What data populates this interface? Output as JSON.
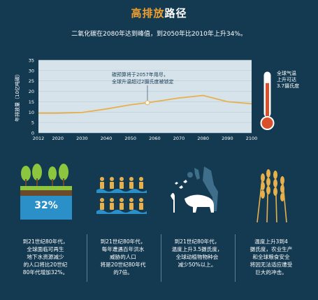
{
  "header": {
    "title_accent": "高排放",
    "title_rest": "路径"
  },
  "subtitle": "二氧化碳在2080年达到峰值，到2050年比2010年上升34%。",
  "annotation": {
    "line1": "碳预算将于2057年用尽，",
    "line2": "全球升温超过2摄氏度被锁定"
  },
  "thermometer": {
    "line1": "全球气温",
    "line2": "上升可达",
    "line3": "3.7摄氏度",
    "fill_fraction": 0.78,
    "icon": "thermometer-icon"
  },
  "chart_data": {
    "type": "line",
    "ylabel": "年排放量（10亿吨碳）",
    "ylim": [
      0,
      35
    ],
    "yticks": [
      0,
      5,
      10,
      15,
      20,
      25,
      30,
      35
    ],
    "xlim": [
      2012,
      2100
    ],
    "xticks": [
      2012,
      2020,
      2030,
      2040,
      2050,
      2060,
      2070,
      2080,
      2090,
      2100
    ],
    "series": [
      {
        "x": [
          2012,
          2020,
          2030,
          2040,
          2050,
          2057,
          2060,
          2070,
          2080,
          2090,
          2100
        ],
        "values": [
          9.5,
          9.5,
          9.8,
          11.5,
          13.5,
          14.5,
          15.0,
          16.8,
          18.0,
          15.0,
          14.0
        ]
      }
    ],
    "marker": {
      "x": 2057,
      "y": 14.5
    },
    "colors": {
      "line": "#e8b04a",
      "area": "#d7e3ea",
      "grid": "#b5c6d0",
      "axis_text": "#ffffff"
    }
  },
  "cards": [
    {
      "badge": "32%",
      "icon": "groundwater-trees-icon",
      "lines": [
        "到21世纪80年代，",
        "全球面临可再生",
        "地下水资源减少",
        "的人口将比20世纪",
        "80年代增加32%。"
      ]
    },
    {
      "icon": "flood-people-icon",
      "lines": [
        "到21世纪80年代，",
        "每年遭遇百年洪水",
        "威胁的人口",
        "将是20世纪80年代",
        "的7倍。"
      ]
    },
    {
      "icon": "wildlife-icon",
      "lines": [
        "到21世纪80年代，",
        "温度上升3.5摄氏度，",
        "全球动植物物种会",
        "减少50%以上。"
      ]
    },
    {
      "icon": "wheat-icon",
      "lines": [
        "温度上升3到4",
        "摄氏度，农业生产",
        "和全球粮食安全",
        "将因无法适应遭受",
        "巨大的冲击。"
      ]
    }
  ],
  "colors": {
    "background": "#143a52",
    "accent": "#f0a030",
    "icons": "#e8b04a",
    "green": "#8cc63f"
  }
}
